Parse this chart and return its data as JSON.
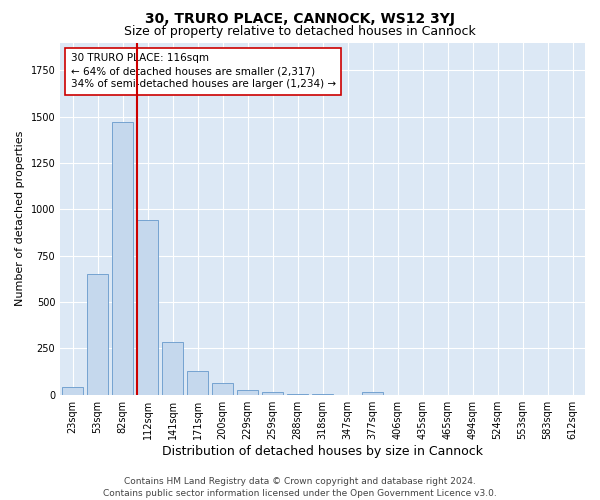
{
  "title": "30, TRURO PLACE, CANNOCK, WS12 3YJ",
  "subtitle": "Size of property relative to detached houses in Cannock",
  "xlabel": "Distribution of detached houses by size in Cannock",
  "ylabel": "Number of detached properties",
  "bar_labels": [
    "23sqm",
    "53sqm",
    "82sqm",
    "112sqm",
    "141sqm",
    "171sqm",
    "200sqm",
    "229sqm",
    "259sqm",
    "288sqm",
    "318sqm",
    "347sqm",
    "377sqm",
    "406sqm",
    "435sqm",
    "465sqm",
    "494sqm",
    "524sqm",
    "553sqm",
    "583sqm",
    "612sqm"
  ],
  "bar_values": [
    40,
    650,
    1470,
    940,
    285,
    130,
    65,
    25,
    15,
    5,
    5,
    0,
    15,
    0,
    0,
    0,
    0,
    0,
    0,
    0,
    0
  ],
  "bar_color": "#c5d8ed",
  "bar_edge_color": "#6699cc",
  "vline_color": "#cc0000",
  "annotation_text": "30 TRURO PLACE: 116sqm\n← 64% of detached houses are smaller (2,317)\n34% of semi-detached houses are larger (1,234) →",
  "annotation_box_color": "#ffffff",
  "annotation_box_edge": "#cc0000",
  "bg_color": "#dce8f5",
  "grid_color": "#ffffff",
  "footnote": "Contains HM Land Registry data © Crown copyright and database right 2024.\nContains public sector information licensed under the Open Government Licence v3.0.",
  "ylim": [
    0,
    1900
  ],
  "title_fontsize": 10,
  "subtitle_fontsize": 9,
  "xlabel_fontsize": 9,
  "ylabel_fontsize": 8,
  "tick_fontsize": 7,
  "annot_fontsize": 7.5,
  "footnote_fontsize": 6.5
}
